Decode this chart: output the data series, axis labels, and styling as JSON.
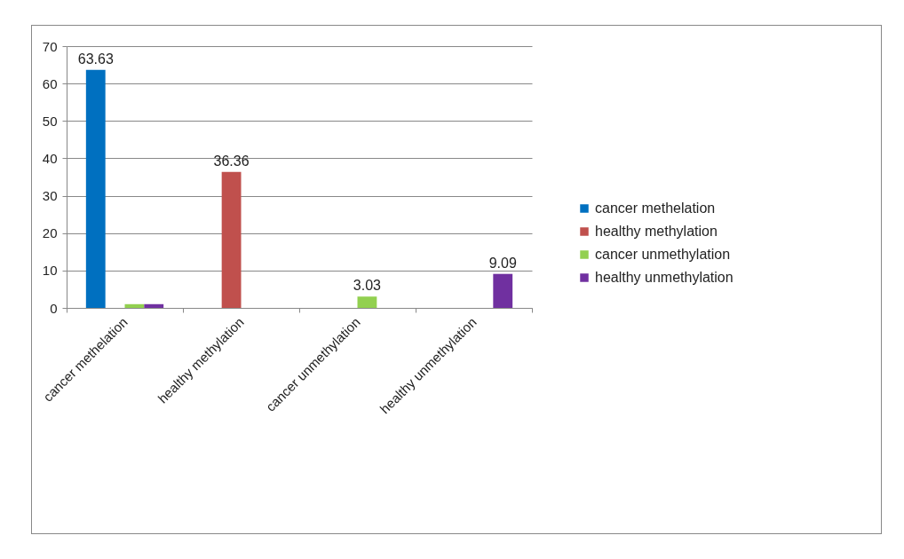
{
  "chart_data": {
    "type": "bar",
    "categories": [
      "cancer methelation",
      "healthy methylation",
      "cancer unmethylation",
      "healthy unmethylation"
    ],
    "series": [
      {
        "name": "cancer methelation",
        "color": "#0070c0",
        "values": [
          63.63,
          null,
          null,
          null
        ],
        "value_labels": [
          "63.63",
          null,
          null,
          null
        ]
      },
      {
        "name": "healthy methylation",
        "color": "#c0504d",
        "values": [
          null,
          36.36,
          null,
          null
        ],
        "value_labels": [
          null,
          "36.36",
          null,
          null
        ]
      },
      {
        "name": "cancer unmethylation",
        "color": "#92d050",
        "values": [
          1,
          null,
          3.03,
          null
        ],
        "value_labels": [
          null,
          null,
          "3.03",
          null
        ]
      },
      {
        "name": "healthy unmethylation",
        "color": "#7030a0",
        "values": [
          1,
          null,
          null,
          9.09
        ],
        "value_labels": [
          null,
          null,
          null,
          "9.09"
        ]
      }
    ],
    "ylim": [
      0,
      70
    ],
    "yticks": [
      0,
      10,
      20,
      30,
      40,
      50,
      60,
      70
    ],
    "grid": "y",
    "legend": "right"
  }
}
